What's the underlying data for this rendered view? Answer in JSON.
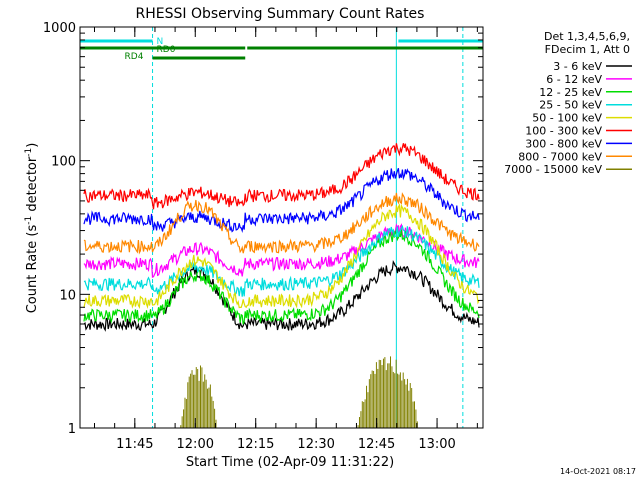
{
  "chart_data": {
    "type": "line",
    "title": "RHESSI Observing Summary Count Rates",
    "xlabel": "Start Time (02-Apr-09 11:31:22)",
    "ylabel_main": "Count Rate (s",
    "ylabel_sup1": "-1",
    "ylabel_mid": " detector",
    "ylabel_sup2": "-1",
    "ylabel_end": ")",
    "ylog": true,
    "ylim": [
      1,
      1000
    ],
    "xlim_minutes": [
      0,
      100
    ],
    "x_start": "11:31:22",
    "x_ticks": [
      {
        "label": "11:45",
        "minute": 13.6
      },
      {
        "label": "12:00",
        "minute": 28.6
      },
      {
        "label": "12:15",
        "minute": 43.6
      },
      {
        "label": "12:30",
        "minute": 58.6
      },
      {
        "label": "12:45",
        "minute": 73.6
      },
      {
        "label": "13:00",
        "minute": 88.6
      }
    ],
    "y_ticks": [
      {
        "label": "1",
        "value": 1
      },
      {
        "label": "10",
        "value": 10
      },
      {
        "label": "100",
        "value": 100
      },
      {
        "label": "1000",
        "value": 1000
      }
    ],
    "legend_header_1": "Det 1,3,4,5,6,9,",
    "legend_header_2": "FDecim 1, Att 0",
    "legend_placement": "right",
    "flags": [
      {
        "label": "N",
        "color": "#00dddd",
        "segments": [
          [
            0,
            18
          ],
          [
            79,
            100
          ]
        ]
      },
      {
        "label": "RD0",
        "color": "#008000",
        "segments": [
          [
            0,
            41
          ],
          [
            41.5,
            100
          ]
        ]
      },
      {
        "label": "RD4",
        "color": "#008000",
        "segments": [
          [
            18,
            41
          ]
        ]
      }
    ],
    "night_boundaries_minutes": [
      18,
      95
    ],
    "saa_line_minute": 78.5,
    "series": [
      {
        "name": "3 - 6 keV",
        "color": "#000000",
        "base": 6,
        "peak1": 15,
        "peak2": 16,
        "quiet_low": 5.5
      },
      {
        "name": "6 - 12 keV",
        "color": "#ff00ff",
        "base": 17,
        "peak1": 22,
        "peak2": 30,
        "quiet_low": 16
      },
      {
        "name": "12 - 25 keV",
        "color": "#00dd00",
        "base": 7,
        "peak1": 14,
        "peak2": 28,
        "quiet_low": 6
      },
      {
        "name": "25 - 50 keV",
        "color": "#00dddd",
        "base": 12,
        "peak1": 16,
        "peak2": 30,
        "quiet_low": 11
      },
      {
        "name": "50 - 100 keV",
        "color": "#dddd00",
        "base": 9,
        "peak1": 18,
        "peak2": 42,
        "quiet_low": 9
      },
      {
        "name": "100 - 300 keV",
        "color": "#ff0000",
        "base": 55,
        "peak1": 58,
        "peak2": 125,
        "quiet_low": 50
      },
      {
        "name": "300 - 800 keV",
        "color": "#0000ff",
        "base": 37,
        "peak1": 38,
        "peak2": 82,
        "quiet_low": 35
      },
      {
        "name": "800 - 7000 keV",
        "color": "#ff8800",
        "base": 23,
        "peak1": 47,
        "peak2": 52,
        "quiet_low": 22
      },
      {
        "name": "7000 - 15000 keV",
        "color": "#808000",
        "base": 0,
        "peak1": 3,
        "peak2": 3.5,
        "quiet_low": 0
      }
    ],
    "grid": false
  },
  "footer": {
    "timestamp": "14-Oct-2021 08:17"
  }
}
